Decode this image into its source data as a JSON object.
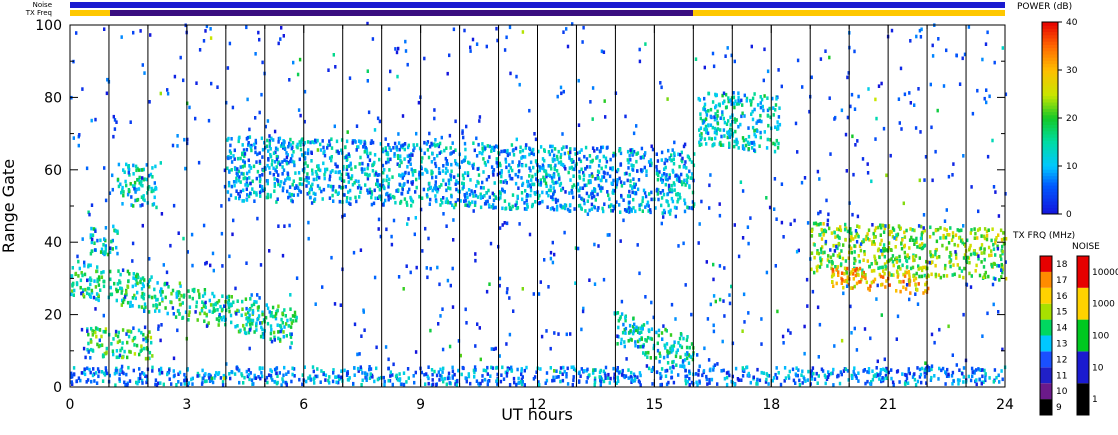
{
  "chart_data": {
    "type": "heatmap",
    "xlabel": "UT hours",
    "ylabel": "Range Gate",
    "xlim": [
      0,
      24
    ],
    "ylim": [
      0,
      100
    ],
    "xticks": [
      "0",
      "3",
      "6",
      "9",
      "12",
      "15",
      "18",
      "21",
      "24"
    ],
    "yticks": [
      "0",
      "20",
      "40",
      "60",
      "80",
      "100"
    ],
    "hour_markers": [
      1,
      2,
      3,
      4,
      5,
      6,
      7,
      8,
      9,
      10,
      11,
      12,
      13,
      14,
      15,
      16,
      17,
      18,
      19,
      20,
      21,
      22,
      23
    ],
    "top_strip_labels": {
      "noise": "Noise",
      "freq": "TX Freq"
    },
    "power_colorbar": {
      "title": "POWER (dB)",
      "ticks": [
        "0",
        "10",
        "20",
        "30",
        "40"
      ],
      "range": [
        0,
        40
      ]
    },
    "freq_colorbar": {
      "title": "TX FRQ (MHz)",
      "ticks": [
        "9",
        "10",
        "11",
        "12",
        "13",
        "14",
        "15",
        "16",
        "17",
        "18"
      ]
    },
    "noise_colorbar": {
      "title": "NOISE",
      "ticks": [
        "1",
        "10",
        "100",
        "1000",
        "10000"
      ]
    },
    "echo_regions": [
      {
        "x": [
          0.0,
          5.8
        ],
        "y_start": 30,
        "y_end": 16,
        "width": 5,
        "power": 16
      },
      {
        "x": [
          4.0,
          16.0
        ],
        "y_start": 60,
        "y_end": 56,
        "width": 9,
        "power": 10
      },
      {
        "x": [
          0.4,
          2.1
        ],
        "y_start": 12,
        "y_end": 11,
        "width": 4,
        "power": 18
      },
      {
        "x": [
          13.9,
          16.0
        ],
        "y_start": 16,
        "y_end": 8,
        "width": 5,
        "power": 14
      },
      {
        "x": [
          16.1,
          18.2
        ],
        "y_start": 74,
        "y_end": 72,
        "width": 8,
        "power": 13
      },
      {
        "x": [
          19.0,
          24.0
        ],
        "y_start": 38,
        "y_end": 36,
        "width": 7,
        "power": 22
      },
      {
        "x": [
          19.5,
          22.0
        ],
        "y_start": 30,
        "y_end": 28,
        "width": 3,
        "power": 30
      },
      {
        "x": [
          0.0,
          24.0
        ],
        "y_start": 2,
        "y_end": 2,
        "width": 3,
        "power": 8
      },
      {
        "x": [
          1.2,
          2.2
        ],
        "y_start": 55,
        "y_end": 55,
        "width": 6,
        "power": 14
      },
      {
        "x": [
          0.5,
          1.2
        ],
        "y_start": 40,
        "y_end": 40,
        "width": 4,
        "power": 14
      }
    ],
    "colors": {
      "noise_strip": "#1a1ad0",
      "freq_strip_before_16UT": "#3a0e80",
      "freq_strip_after_16UT": "#ffc800",
      "background": "#ffffff"
    }
  }
}
